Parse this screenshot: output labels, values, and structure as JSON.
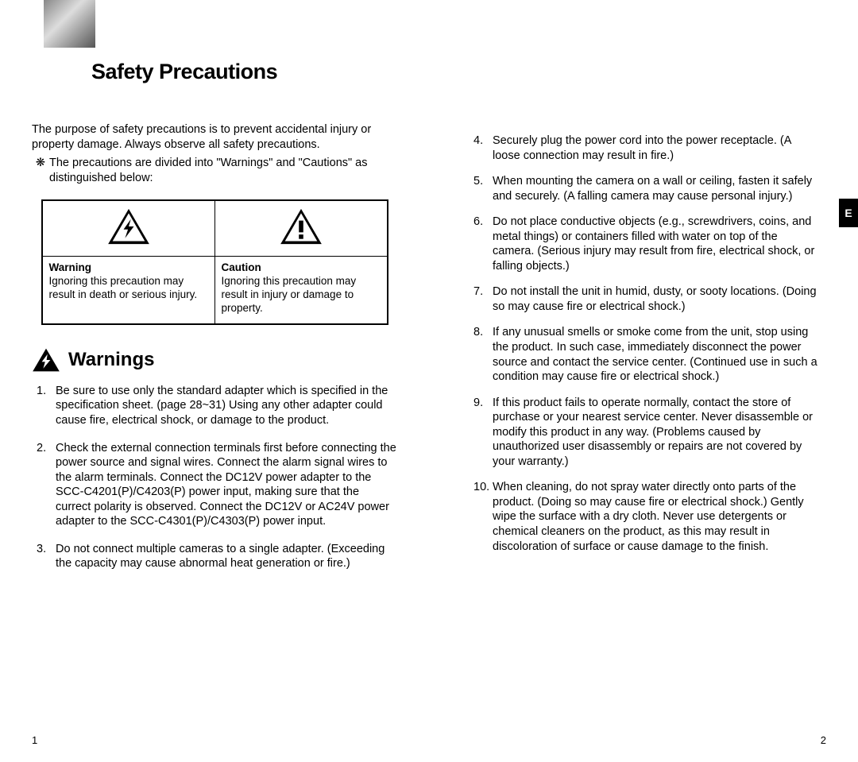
{
  "page": {
    "title": "Safety Precautions",
    "intro": "The purpose of safety precautions is to prevent accidental injury or property damage. Always observe all safety precautions.",
    "bullet_mark": "❋",
    "bullet": "The precautions are divided into \"Warnings\" and \"Cautions\" as distinguished below:",
    "table": {
      "warning_label": "Warning",
      "warning_desc": "Ignoring this precaution may result in death or serious injury.",
      "caution_label": "Caution",
      "caution_desc": "Ignoring this precaution may result in injury or damage to property."
    },
    "section_heading": "Warnings",
    "left_items": [
      {
        "num": "1.",
        "text": "Be sure to use only the standard adapter which is specified in the specification sheet. (page 28~31) Using any other adapter could cause fire, electrical shock, or damage to the product."
      },
      {
        "num": "2.",
        "text": "Check the external connection terminals first before connecting the power source and signal wires. Connect the alarm signal wires to the alarm terminals. Connect the DC12V power adapter to the SCC-C4201(P)/C4203(P) power  input, making sure that the currect polarity is observed. Connect the DC12V or AC24V power adapter to the SCC-C4301(P)/C4303(P) power input."
      },
      {
        "num": "3.",
        "text": "Do not connect multiple cameras to a single adapter. (Exceeding the capacity may cause abnormal heat generation or fire.)"
      }
    ],
    "right_items": [
      {
        "num": "4.",
        "text": "Securely plug the power cord into the power receptacle. (A loose connection may result in fire.)"
      },
      {
        "num": "5.",
        "text": "When mounting the camera on a wall or ceiling, fasten it safely and securely. (A falling camera may cause personal injury.)"
      },
      {
        "num": "6.",
        "text": "Do not place conductive objects (e.g., screwdrivers, coins, and metal things) or containers filled with water on top of the camera. (Serious injury may result from fire, electrical shock, or falling objects.)"
      },
      {
        "num": "7.",
        "text": "Do not install the unit in humid, dusty, or sooty locations. (Doing so may cause fire or electrical shock.)"
      },
      {
        "num": "8.",
        "text": "If any unusual smells or smoke come from the unit, stop using the product. In such case, immediately disconnect the power source and contact the service center. (Continued use in such a condition may cause fire or electrical shock.)"
      },
      {
        "num": "9.",
        "text": "If this product fails to operate normally, contact the store of purchase or your nearest service center. Never disassemble or modify this product in any way. (Problems caused by unauthorized user disassembly or repairs are not covered by your warranty.)"
      },
      {
        "num": "10.",
        "text": "When cleaning, do not spray water directly onto parts of the product. (Doing so may cause fire or electrical shock.) Gently wipe the surface with a dry cloth. Never use detergents or chemical cleaners on the product, as this may result in discoloration of surface or cause damage to the finish."
      }
    ],
    "page_num_left": "1",
    "page_num_right": "2",
    "side_tab": "E"
  },
  "icons": {
    "warning_bolt": "bolt-triangle",
    "caution_excl": "excl-triangle"
  },
  "colors": {
    "text": "#000000",
    "background": "#ffffff",
    "table_border": "#000000",
    "tab_bg": "#000000",
    "tab_fg": "#ffffff"
  },
  "fonts": {
    "title_size_pt": 20,
    "heading_size_pt": 18,
    "body_size_pt": 11
  }
}
